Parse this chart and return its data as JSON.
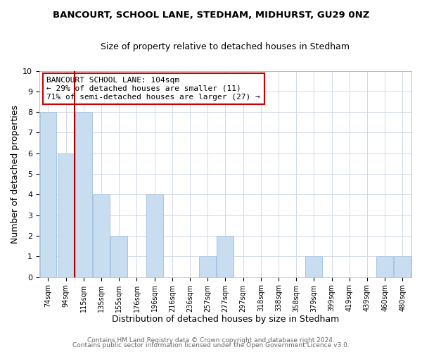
{
  "title": "BANCOURT, SCHOOL LANE, STEDHAM, MIDHURST, GU29 0NZ",
  "subtitle": "Size of property relative to detached houses in Stedham",
  "xlabel": "Distribution of detached houses by size in Stedham",
  "ylabel": "Number of detached properties",
  "bar_labels": [
    "74sqm",
    "94sqm",
    "115sqm",
    "135sqm",
    "155sqm",
    "176sqm",
    "196sqm",
    "216sqm",
    "236sqm",
    "257sqm",
    "277sqm",
    "297sqm",
    "318sqm",
    "338sqm",
    "358sqm",
    "379sqm",
    "399sqm",
    "419sqm",
    "439sqm",
    "460sqm",
    "480sqm"
  ],
  "bar_values": [
    8,
    6,
    8,
    4,
    2,
    0,
    4,
    0,
    0,
    1,
    2,
    0,
    0,
    0,
    0,
    1,
    0,
    0,
    0,
    1,
    1
  ],
  "bar_color": "#c9ddf0",
  "bar_edge_color": "#a8c4e0",
  "subject_line_color": "#aa0000",
  "annotation_text": "BANCOURT SCHOOL LANE: 104sqm\n← 29% of detached houses are smaller (11)\n71% of semi-detached houses are larger (27) →",
  "annotation_box_color": "white",
  "annotation_box_edge": "#cc0000",
  "ylim": [
    0,
    10
  ],
  "yticks": [
    0,
    1,
    2,
    3,
    4,
    5,
    6,
    7,
    8,
    9,
    10
  ],
  "footer_line1": "Contains HM Land Registry data © Crown copyright and database right 2024.",
  "footer_line2": "Contains public sector information licensed under the Open Government Licence v3.0.",
  "background_color": "#ffffff",
  "plot_bg_color": "#ffffff",
  "grid_color": "#d0d8e8"
}
